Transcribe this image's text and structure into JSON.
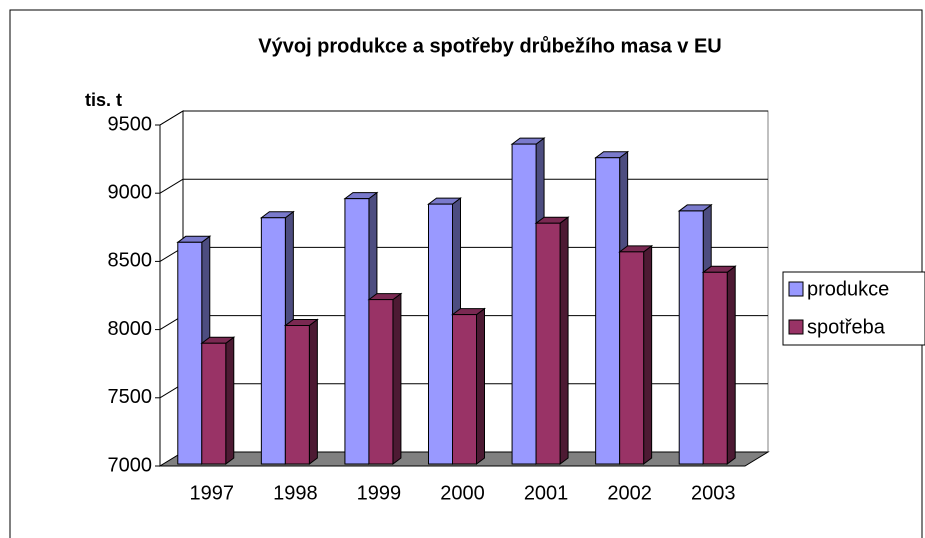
{
  "chart_data": {
    "type": "bar3d",
    "title": "Vývoj produkce a spotřeby drůbežího masa v EU",
    "y_label": "tis. t",
    "categories": [
      "1997",
      "1998",
      "1999",
      "2000",
      "2001",
      "2002",
      "2003"
    ],
    "series": [
      {
        "name": "produkce",
        "color": "#9999ff",
        "values": [
          8640,
          8820,
          8960,
          8920,
          9360,
          9260,
          8870
        ]
      },
      {
        "name": "spotřeba",
        "color": "#993366",
        "values": [
          7900,
          8030,
          8220,
          8110,
          8780,
          8570,
          8420
        ]
      }
    ],
    "ylim": [
      7000,
      9500
    ],
    "yticks": [
      7000,
      7500,
      8000,
      8500,
      9000,
      9500
    ],
    "grid": true,
    "legend": "right"
  }
}
